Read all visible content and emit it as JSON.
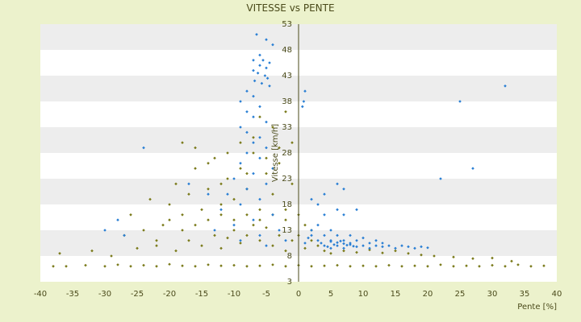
{
  "chart_data": {
    "type": "scatter",
    "title": "VITESSE vs PENTE",
    "xlabel": "Pente [%]",
    "ylabel": "Vitesse [km/h]",
    "xlim": [
      -40,
      40
    ],
    "ylim": [
      3,
      53
    ],
    "x_ticks": [
      -40,
      -35,
      -30,
      -25,
      -20,
      -15,
      -10,
      -5,
      0,
      5,
      10,
      15,
      20,
      25,
      30,
      35,
      40
    ],
    "y_ticks": [
      3,
      8,
      13,
      18,
      23,
      28,
      33,
      38,
      43,
      48,
      53
    ],
    "grid": "horizontal bands",
    "legend": "none",
    "colors": {
      "background": "#ecf2cc",
      "band_light": "#ffffff",
      "band_dark": "#ededed",
      "series_olive": "#7a7a1a",
      "series_blue": "#2a7fd4",
      "axis": "#4a4a1a"
    },
    "series": [
      {
        "color_key": "series_olive",
        "points": [
          [
            -38,
            6
          ],
          [
            -36,
            6
          ],
          [
            -33,
            6.2
          ],
          [
            -30,
            6
          ],
          [
            -28,
            6.3
          ],
          [
            -26,
            6
          ],
          [
            -24,
            6.2
          ],
          [
            -22,
            6
          ],
          [
            -20,
            6.4
          ],
          [
            -18,
            6.1
          ],
          [
            -16,
            6
          ],
          [
            -14,
            6.3
          ],
          [
            -12,
            6.1
          ],
          [
            -10,
            6.2
          ],
          [
            -8,
            6
          ],
          [
            -6,
            6.1
          ],
          [
            -4,
            6.3
          ],
          [
            -2,
            6
          ],
          [
            0,
            6.2
          ],
          [
            2,
            6
          ],
          [
            4,
            6.1
          ],
          [
            6,
            6.2
          ],
          [
            8,
            6
          ],
          [
            10,
            6.1
          ],
          [
            12,
            6
          ],
          [
            14,
            6.2
          ],
          [
            16,
            6
          ],
          [
            18,
            6.1
          ],
          [
            20,
            6
          ],
          [
            22,
            6.3
          ],
          [
            24,
            6
          ],
          [
            26,
            6.1
          ],
          [
            28,
            6
          ],
          [
            30,
            6.2
          ],
          [
            32,
            6
          ],
          [
            34,
            6.3
          ],
          [
            36,
            6
          ],
          [
            38,
            6.1
          ],
          [
            -37,
            8.5
          ],
          [
            -32,
            9
          ],
          [
            -29,
            8
          ],
          [
            -25,
            9.5
          ],
          [
            -22,
            10
          ],
          [
            -19,
            9
          ],
          [
            -17,
            11
          ],
          [
            -15,
            10
          ],
          [
            -13,
            12
          ],
          [
            -12,
            9.5
          ],
          [
            -11,
            11.5
          ],
          [
            -10,
            13
          ],
          [
            -9,
            10.5
          ],
          [
            -8,
            12
          ],
          [
            -7,
            14
          ],
          [
            -6,
            11
          ],
          [
            -5,
            13.5
          ],
          [
            -4,
            10
          ],
          [
            -3,
            12
          ],
          [
            -2,
            9
          ],
          [
            -1,
            11
          ],
          [
            1,
            9.5
          ],
          [
            2,
            11
          ],
          [
            3,
            10
          ],
          [
            4,
            9
          ],
          [
            5,
            8.5
          ],
          [
            7,
            9
          ],
          [
            9,
            8.7
          ],
          [
            11,
            9.2
          ],
          [
            13,
            8.6
          ],
          [
            15,
            9
          ],
          [
            17,
            8.5
          ],
          [
            19,
            8.2
          ],
          [
            21,
            8
          ],
          [
            24,
            7.8
          ],
          [
            27,
            7.5
          ],
          [
            30,
            7.6
          ],
          [
            33,
            7
          ],
          [
            -26,
            16
          ],
          [
            -23,
            19
          ],
          [
            -21,
            14
          ],
          [
            -20,
            18
          ],
          [
            -19,
            22
          ],
          [
            -18,
            16
          ],
          [
            -17,
            20
          ],
          [
            -16,
            25
          ],
          [
            -15,
            17
          ],
          [
            -14,
            21
          ],
          [
            -13,
            27
          ],
          [
            -12,
            18
          ],
          [
            -11,
            23
          ],
          [
            -10,
            19
          ],
          [
            -9,
            25
          ],
          [
            -8,
            21
          ],
          [
            -7,
            28
          ],
          [
            -6,
            17
          ],
          [
            -5,
            24
          ],
          [
            -4,
            20
          ],
          [
            -3,
            26
          ],
          [
            -2,
            15
          ],
          [
            -1,
            22
          ],
          [
            0,
            12
          ],
          [
            1,
            14
          ],
          [
            2,
            13
          ],
          [
            -18,
            30
          ],
          [
            -16,
            29
          ],
          [
            -14,
            26
          ],
          [
            -12,
            22
          ],
          [
            -11,
            28
          ],
          [
            -9,
            30
          ],
          [
            -8,
            24
          ],
          [
            -7,
            31
          ],
          [
            -6,
            35
          ],
          [
            -5,
            27
          ],
          [
            -4,
            33
          ],
          [
            -3,
            29
          ],
          [
            -2,
            36
          ],
          [
            -1,
            30
          ],
          [
            -27,
            12
          ],
          [
            -24,
            13
          ],
          [
            -22,
            11
          ],
          [
            -20,
            15
          ],
          [
            -18,
            13
          ],
          [
            -16,
            14
          ],
          [
            -14,
            15
          ],
          [
            -12,
            16
          ],
          [
            -10,
            15
          ],
          [
            -8,
            16
          ],
          [
            -6,
            15
          ],
          [
            -4,
            16
          ],
          [
            -2,
            17
          ],
          [
            0,
            16
          ]
        ]
      },
      {
        "color_key": "series_blue",
        "points": [
          [
            -6.5,
            51
          ],
          [
            -5,
            50
          ],
          [
            -4,
            49
          ],
          [
            -6,
            47
          ],
          [
            -7,
            46
          ],
          [
            -5.5,
            46
          ],
          [
            -4.5,
            45.5
          ],
          [
            -6,
            45
          ],
          [
            -5,
            44.5
          ],
          [
            -7,
            44
          ],
          [
            -6.3,
            43.5
          ],
          [
            -5.2,
            43
          ],
          [
            -4.8,
            42.5
          ],
          [
            -6.8,
            42
          ],
          [
            -5.7,
            41.5
          ],
          [
            -4.5,
            41
          ],
          [
            -8,
            40
          ],
          [
            -7,
            39
          ],
          [
            -9,
            38
          ],
          [
            -6,
            37
          ],
          [
            -8,
            36
          ],
          [
            -7,
            35
          ],
          [
            -5,
            34
          ],
          [
            -9,
            33
          ],
          [
            -8,
            32
          ],
          [
            -6,
            31
          ],
          [
            -7,
            30
          ],
          [
            -5,
            29
          ],
          [
            -8,
            28
          ],
          [
            -6,
            27
          ],
          [
            -9,
            26
          ],
          [
            -4,
            25
          ],
          [
            -7,
            24
          ],
          [
            -10,
            23
          ],
          [
            -5,
            22
          ],
          [
            -8,
            21
          ],
          [
            -11,
            20
          ],
          [
            -6,
            19
          ],
          [
            -9,
            18
          ],
          [
            -12,
            17
          ],
          [
            -4,
            16
          ],
          [
            -7,
            15
          ],
          [
            -10,
            14
          ],
          [
            -13,
            13
          ],
          [
            -3,
            13
          ],
          [
            -6,
            12
          ],
          [
            -9,
            11
          ],
          [
            -2,
            11
          ],
          [
            -5,
            10
          ],
          [
            -24,
            29
          ],
          [
            -17,
            22
          ],
          [
            -14,
            20
          ],
          [
            -30,
            13
          ],
          [
            -28,
            15
          ],
          [
            -27,
            12
          ],
          [
            1,
            40
          ],
          [
            0.8,
            38
          ],
          [
            0.6,
            37
          ],
          [
            1,
            10.5
          ],
          [
            1.5,
            11.5
          ],
          [
            2,
            12
          ],
          [
            2,
            13
          ],
          [
            3,
            11
          ],
          [
            3,
            14
          ],
          [
            4,
            10
          ],
          [
            4,
            12
          ],
          [
            4,
            16
          ],
          [
            5,
            11
          ],
          [
            5,
            9.5
          ],
          [
            5,
            13
          ],
          [
            6,
            10
          ],
          [
            6,
            12
          ],
          [
            6,
            22
          ],
          [
            7,
            11
          ],
          [
            7,
            9.5
          ],
          [
            7,
            21
          ],
          [
            8,
            10.5
          ],
          [
            8,
            12
          ],
          [
            9,
            11
          ],
          [
            9,
            9.8
          ],
          [
            10,
            10
          ],
          [
            10,
            11.5
          ],
          [
            11,
            10.5
          ],
          [
            11,
            9.5
          ],
          [
            12,
            10
          ],
          [
            12,
            11
          ],
          [
            13,
            9.8
          ],
          [
            13,
            10.5
          ],
          [
            14,
            10
          ],
          [
            15,
            9.5
          ],
          [
            16,
            10
          ],
          [
            17,
            9.8
          ],
          [
            18,
            9.5
          ],
          [
            19,
            9.8
          ],
          [
            20,
            9.6
          ],
          [
            6,
            17
          ],
          [
            3,
            18
          ],
          [
            2,
            19
          ],
          [
            7,
            16
          ],
          [
            9,
            17
          ],
          [
            4,
            20
          ],
          [
            5,
            10.8
          ],
          [
            6,
            10.6
          ],
          [
            7,
            10.4
          ],
          [
            8,
            10.2
          ],
          [
            4.5,
            9.8
          ],
          [
            5.5,
            10.2
          ],
          [
            6.5,
            10.9
          ],
          [
            7.5,
            10.1
          ],
          [
            8.5,
            9.9
          ],
          [
            3.5,
            10.5
          ],
          [
            22,
            23
          ],
          [
            25,
            38
          ],
          [
            27,
            25
          ],
          [
            32,
            41
          ]
        ]
      }
    ]
  }
}
